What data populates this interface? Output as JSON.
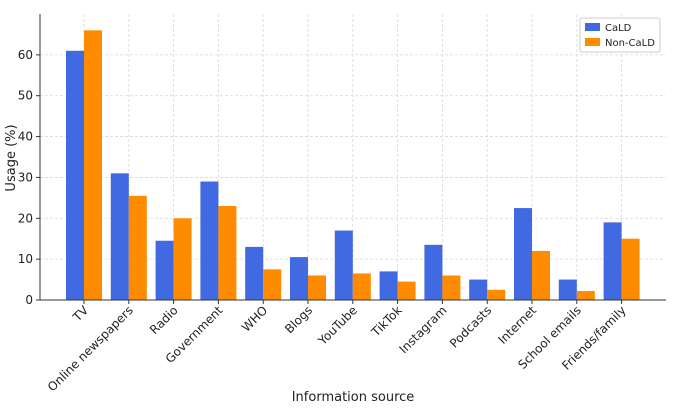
{
  "chart_data": {
    "type": "bar",
    "title": "",
    "xlabel": "Information source",
    "ylabel": "Usage (%)",
    "ylim": [
      0,
      70
    ],
    "yticks": [
      0,
      10,
      20,
      30,
      40,
      50,
      60
    ],
    "grid": true,
    "legend_position": "top-right",
    "categories": [
      "TV",
      "Online newspapers",
      "Radio",
      "Government",
      "WHO",
      "Blogs",
      "YouTube",
      "TikTok",
      "Instagram",
      "Podcasts",
      "Internet",
      "School emails",
      "Friends/family"
    ],
    "series": [
      {
        "name": "CaLD",
        "color": "#4169e1",
        "values": [
          61,
          31,
          14.5,
          29,
          13,
          10.5,
          17,
          7,
          13.5,
          5,
          22.5,
          5,
          19
        ]
      },
      {
        "name": "Non-CaLD",
        "color": "#ff8c00",
        "values": [
          66,
          25.5,
          20,
          23,
          7.5,
          6,
          6.5,
          4.5,
          6,
          2.5,
          12,
          2.2,
          15
        ]
      }
    ]
  }
}
